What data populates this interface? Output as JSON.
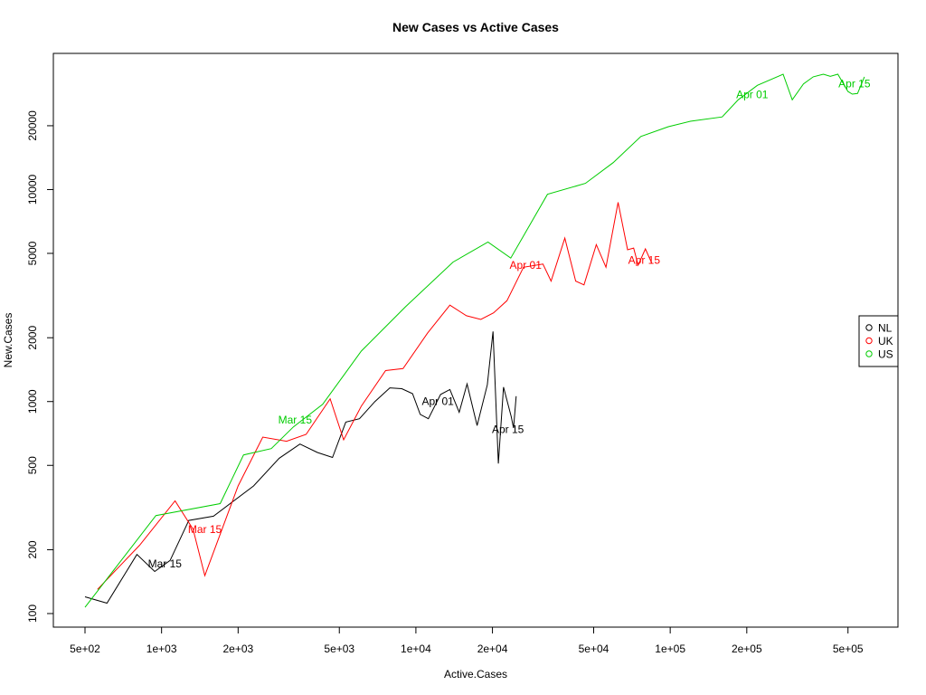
{
  "chart_data": {
    "type": "line",
    "title": "New Cases vs Active Cases",
    "xlabel": "Active.Cases",
    "ylabel": "New.Cases",
    "xscale": "log",
    "yscale": "log",
    "xlim": [
      500,
      600000
    ],
    "ylim": [
      100,
      35000
    ],
    "grid": false,
    "legend_position": "right",
    "x_tick_labels": [
      "5e+02",
      "1e+03",
      "2e+03",
      "5e+03",
      "1e+04",
      "2e+04",
      "5e+04",
      "1e+05",
      "2e+05",
      "5e+05"
    ],
    "x_ticks": [
      500,
      1000,
      2000,
      5000,
      10000,
      20000,
      50000,
      100000,
      200000,
      500000
    ],
    "y_tick_labels": [
      "100",
      "200",
      "500",
      "1000",
      "2000",
      "5000",
      "10000",
      "20000"
    ],
    "y_ticks": [
      100,
      200,
      500,
      1000,
      2000,
      5000,
      10000,
      20000
    ],
    "series": [
      {
        "name": "NL",
        "color": "#000000",
        "points": [
          [
            500,
            120
          ],
          [
            610,
            112
          ],
          [
            800,
            190
          ],
          [
            940,
            158
          ],
          [
            1080,
            178
          ],
          [
            1280,
            275
          ],
          [
            1600,
            288
          ],
          [
            2300,
            400
          ],
          [
            2900,
            540
          ],
          [
            3500,
            630
          ],
          [
            4100,
            575
          ],
          [
            4700,
            545
          ],
          [
            5300,
            800
          ],
          [
            6000,
            830
          ],
          [
            6900,
            1000
          ],
          [
            7900,
            1160
          ],
          [
            8800,
            1150
          ],
          [
            9700,
            1090
          ],
          [
            10400,
            870
          ],
          [
            11200,
            830
          ],
          [
            12500,
            1080
          ],
          [
            13600,
            1140
          ],
          [
            14800,
            890
          ],
          [
            15900,
            1210
          ],
          [
            17400,
            770
          ],
          [
            19100,
            1200
          ],
          [
            20100,
            2140
          ],
          [
            21100,
            510
          ],
          [
            22100,
            1170
          ],
          [
            23700,
            850
          ],
          [
            24200,
            750
          ],
          [
            24800,
            1060
          ]
        ],
        "annotations": [
          {
            "label": "Mar 15",
            "x": 1030,
            "y": 172
          },
          {
            "label": "Apr 01",
            "x": 12200,
            "y": 1000
          },
          {
            "label": "Apr 15",
            "x": 23000,
            "y": 740
          }
        ]
      },
      {
        "name": "UK",
        "color": "#ff0000",
        "points": [
          [
            560,
            130
          ],
          [
            820,
            210
          ],
          [
            1130,
            340
          ],
          [
            1330,
            250
          ],
          [
            1480,
            151
          ],
          [
            2000,
            400
          ],
          [
            2500,
            680
          ],
          [
            3100,
            650
          ],
          [
            3700,
            700
          ],
          [
            4600,
            1030
          ],
          [
            5200,
            660
          ],
          [
            6100,
            950
          ],
          [
            7600,
            1400
          ],
          [
            8900,
            1430
          ],
          [
            11100,
            2100
          ],
          [
            13600,
            2850
          ],
          [
            15800,
            2540
          ],
          [
            18000,
            2440
          ],
          [
            20200,
            2620
          ],
          [
            22800,
            2990
          ],
          [
            26500,
            4300
          ],
          [
            31600,
            4450
          ],
          [
            34000,
            3700
          ],
          [
            38500,
            5900
          ],
          [
            42500,
            3700
          ],
          [
            45800,
            3550
          ],
          [
            51200,
            5500
          ],
          [
            55900,
            4300
          ],
          [
            62400,
            8700
          ],
          [
            68000,
            5200
          ],
          [
            71800,
            5300
          ],
          [
            74800,
            4400
          ],
          [
            79900,
            5250
          ],
          [
            84600,
            4500
          ]
        ],
        "annotations": [
          {
            "label": "Mar 15",
            "x": 1480,
            "y": 250
          },
          {
            "label": "Apr 01",
            "x": 27000,
            "y": 4400
          },
          {
            "label": "Apr 15",
            "x": 79000,
            "y": 4650
          }
        ]
      },
      {
        "name": "US",
        "color": "#00cd00",
        "points": [
          [
            500,
            107
          ],
          [
            950,
            290
          ],
          [
            1700,
            330
          ],
          [
            2100,
            560
          ],
          [
            2700,
            600
          ],
          [
            3300,
            760
          ],
          [
            4300,
            970
          ],
          [
            6100,
            1730
          ],
          [
            9100,
            2800
          ],
          [
            14000,
            4550
          ],
          [
            19200,
            5650
          ],
          [
            23600,
            4750
          ],
          [
            32900,
            9500
          ],
          [
            46400,
            10700
          ],
          [
            59700,
            13400
          ],
          [
            76700,
            17800
          ],
          [
            98300,
            19800
          ],
          [
            120000,
            21000
          ],
          [
            160000,
            22000
          ],
          [
            185000,
            26500
          ],
          [
            220000,
            31000
          ],
          [
            278000,
            35000
          ],
          [
            302000,
            26500
          ],
          [
            334000,
            31500
          ],
          [
            365000,
            34000
          ],
          [
            400000,
            35000
          ],
          [
            426000,
            34200
          ],
          [
            456000,
            35000
          ],
          [
            500000,
            29000
          ],
          [
            520000,
            28200
          ],
          [
            545000,
            28400
          ],
          [
            580000,
            34000
          ]
        ],
        "annotations": [
          {
            "label": "Mar 15",
            "x": 3350,
            "y": 820
          },
          {
            "label": "Apr 01",
            "x": 210000,
            "y": 28000
          },
          {
            "label": "Apr 15",
            "x": 530000,
            "y": 31500
          }
        ]
      }
    ]
  }
}
